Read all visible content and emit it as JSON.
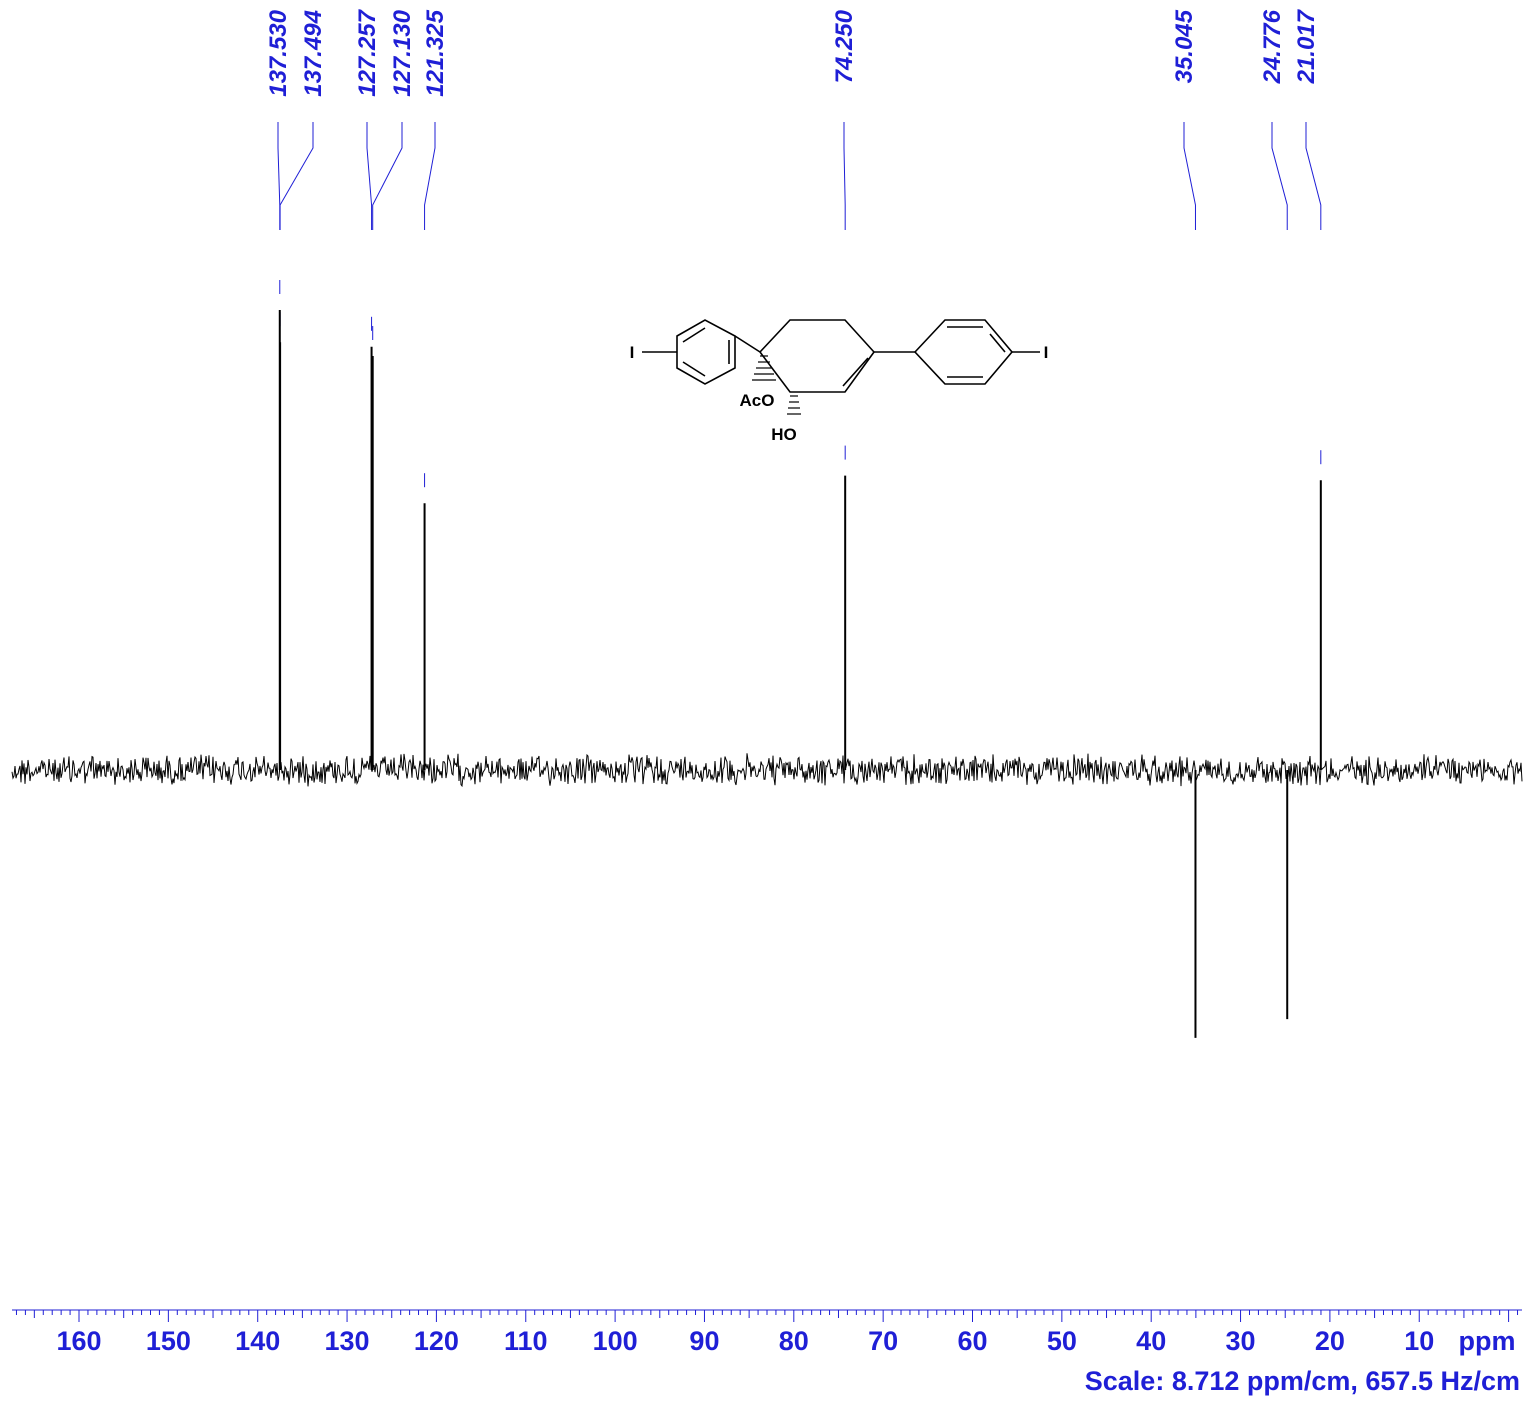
{
  "chart_data": {
    "type": "line",
    "title": "",
    "xlabel": "ppm",
    "ylabel": "",
    "x_reversed": true,
    "xlim": [
      167.5,
      -1.5
    ],
    "x_ticks": [
      160,
      150,
      140,
      130,
      120,
      110,
      100,
      90,
      80,
      70,
      60,
      50,
      40,
      30,
      20,
      10
    ],
    "x_axis_unit": "ppm",
    "scale_text": "Scale: 8.712 ppm/cm, 657.5 Hz/cm",
    "peak_labels": [
      "137.530",
      "137.494",
      "127.257",
      "127.130",
      "121.325",
      "74.250",
      "35.045",
      "24.776",
      "21.017"
    ],
    "series": [
      {
        "values_note": "",
        "peaks": [
          {
            "ppm": 137.53,
            "intensity": 1.0
          },
          {
            "ppm": 137.494,
            "intensity": 0.93
          },
          {
            "ppm": 127.257,
            "intensity": 0.92
          },
          {
            "ppm": 127.13,
            "intensity": 0.9
          },
          {
            "ppm": 121.325,
            "intensity": 0.58
          },
          {
            "ppm": 74.25,
            "intensity": 0.64
          },
          {
            "ppm": 35.045,
            "intensity": -0.57
          },
          {
            "ppm": 24.776,
            "intensity": -0.53
          },
          {
            "ppm": 21.017,
            "intensity": 0.63
          }
        ]
      }
    ],
    "grid": false,
    "legend": "none",
    "colors": {
      "trace": "#000000",
      "labels": "#1f1fd6",
      "integral_marks": "#1f1fd6"
    }
  },
  "structure": {
    "labels": {
      "iodo_left": "I",
      "iodo_right": "I",
      "acetoxy": "AcO",
      "hydroxy": "HO"
    }
  }
}
